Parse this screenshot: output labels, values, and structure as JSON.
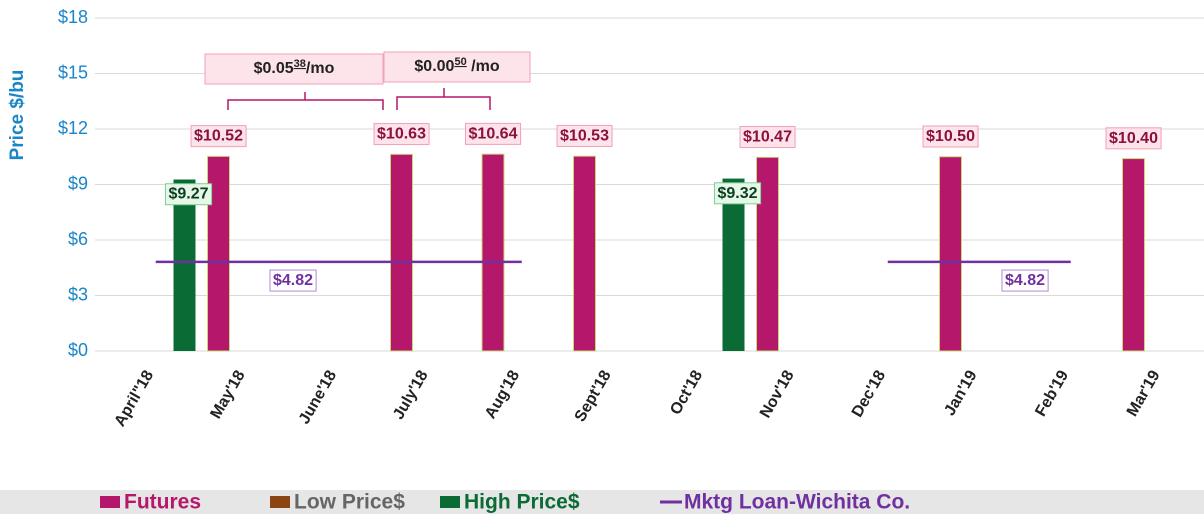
{
  "chart_data": {
    "type": "bar",
    "y_label": "Price $/bu",
    "categories": [
      "April\"18",
      "May'18",
      "June'18",
      "July'18",
      "Aug'18",
      "Sept'18",
      "Oct'18",
      "Nov'18",
      "Dec'18",
      "Jan'19",
      "Feb'19",
      "Mar'19"
    ],
    "series": [
      {
        "name": "Futures",
        "color": "#b5176b",
        "values": [
          null,
          10.52,
          null,
          10.63,
          10.64,
          10.53,
          null,
          10.47,
          null,
          10.5,
          null,
          10.4
        ],
        "value_labels": [
          null,
          "$10.52",
          null,
          "$10.63",
          "$10.64",
          "$10.53",
          null,
          "$10.47",
          null,
          "$10.50",
          null,
          "$10.40"
        ]
      },
      {
        "name": "Low Price$",
        "color": "#8b4513",
        "values": [
          null,
          null,
          null,
          null,
          null,
          null,
          null,
          null,
          null,
          null,
          null,
          null
        ]
      },
      {
        "name": "High Price$",
        "color": "#0b6b35",
        "values": [
          null,
          9.27,
          null,
          null,
          null,
          null,
          null,
          9.32,
          null,
          null,
          null,
          null
        ],
        "value_labels": [
          null,
          "$9.27",
          null,
          null,
          null,
          null,
          null,
          "$9.32",
          null,
          null,
          null,
          null
        ]
      },
      {
        "name": "Mktg Loan-Wichita Co.",
        "type": "line",
        "color": "#7030a0",
        "values": [
          null,
          4.82,
          4.82,
          4.82,
          4.82,
          null,
          null,
          null,
          null,
          4.82,
          4.82,
          null
        ],
        "value_labels": [
          null,
          null,
          "$4.82",
          null,
          null,
          null,
          null,
          null,
          null,
          null,
          "$4.82",
          null
        ]
      }
    ],
    "ylim": [
      0,
      18
    ],
    "yticks": [
      {
        "value": 0,
        "label": "$0"
      },
      {
        "value": 3,
        "label": "$3"
      },
      {
        "value": 6,
        "label": "$6"
      },
      {
        "value": 9,
        "label": "$9"
      },
      {
        "value": 12,
        "label": "$12"
      },
      {
        "value": 15,
        "label": "$15"
      },
      {
        "value": 18,
        "label": "$18"
      }
    ],
    "grid": true,
    "legend": "bottom",
    "annotations": [
      {
        "parts": [
          "$0.05",
          "38",
          "/mo"
        ]
      },
      {
        "parts": [
          "$0.00",
          "50",
          " /mo"
        ]
      }
    ]
  }
}
